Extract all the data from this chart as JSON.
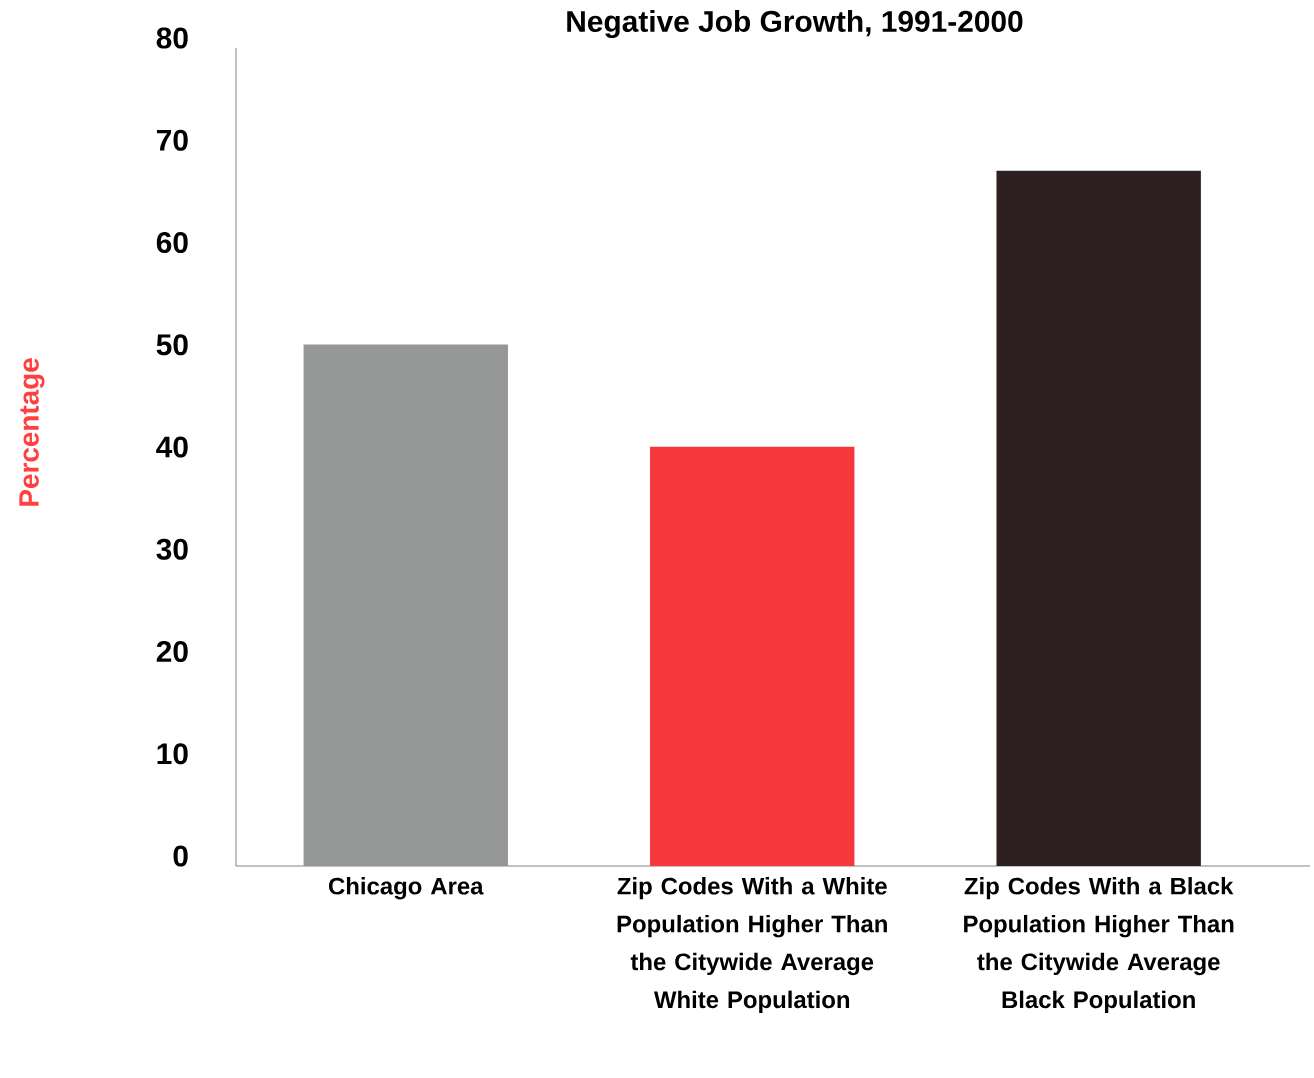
{
  "chart_data": {
    "type": "bar",
    "title": "Negative Job Growth, 1991-2000",
    "ylabel": "Percentage",
    "categories": [
      "Chicago Area",
      "Zip Codes With a White Population Higher Than the Citywide Average White Population",
      "Zip Codes With a Black Population Higher Than the Citywide Average Black Population"
    ],
    "values": [
      51,
      41,
      68
    ],
    "colors": [
      "#959696",
      "#f5383b",
      "#2e2020"
    ],
    "ylim": [
      0,
      80
    ],
    "yticks": [
      0,
      10,
      20,
      30,
      40,
      50,
      60,
      70,
      80
    ]
  }
}
